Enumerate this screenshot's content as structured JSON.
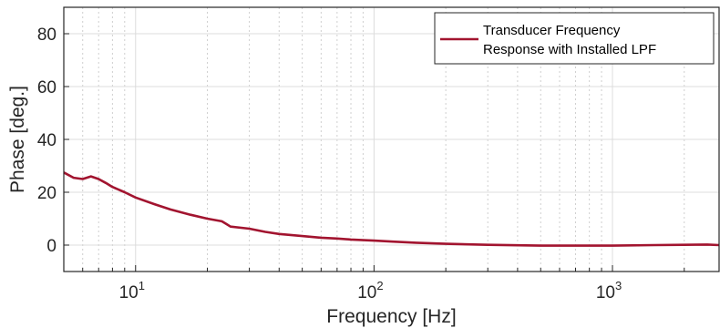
{
  "chart_data": {
    "type": "line",
    "title": "",
    "xlabel": "Frequency [Hz]",
    "ylabel": "Phase [deg.]",
    "xscale": "log",
    "xlim": [
      5,
      2800
    ],
    "ylim": [
      -10,
      90
    ],
    "grid": true,
    "x_ticks": [
      {
        "value": 10,
        "base": "10",
        "exp": "1"
      },
      {
        "value": 100,
        "base": "10",
        "exp": "2"
      },
      {
        "value": 1000,
        "base": "10",
        "exp": "3"
      }
    ],
    "y_ticks": [
      0,
      20,
      40,
      60,
      80
    ],
    "legend": {
      "location": "top-right",
      "lines": [
        "Transducer Frequency",
        "Response with Installed LPF"
      ]
    },
    "series": [
      {
        "name": "Transducer Frequency Response with Installed LPF",
        "color": "#a2142f",
        "x": [
          5,
          5.5,
          6,
          6.5,
          7,
          7.5,
          8,
          9,
          10,
          12,
          14,
          17,
          20,
          23,
          24,
          25,
          30,
          35,
          40,
          50,
          60,
          70,
          80,
          100,
          120,
          150,
          200,
          300,
          500,
          1000,
          1500,
          2000,
          2500,
          2800
        ],
        "y": [
          27.5,
          25.5,
          25.0,
          26.0,
          25.0,
          23.5,
          22.0,
          20.0,
          18.0,
          15.5,
          13.5,
          11.5,
          10.0,
          9.0,
          8.0,
          7.0,
          6.2,
          5.0,
          4.2,
          3.4,
          2.8,
          2.5,
          2.1,
          1.7,
          1.3,
          0.9,
          0.5,
          0.1,
          -0.2,
          -0.2,
          0.0,
          0.1,
          0.2,
          0.0
        ]
      }
    ]
  }
}
